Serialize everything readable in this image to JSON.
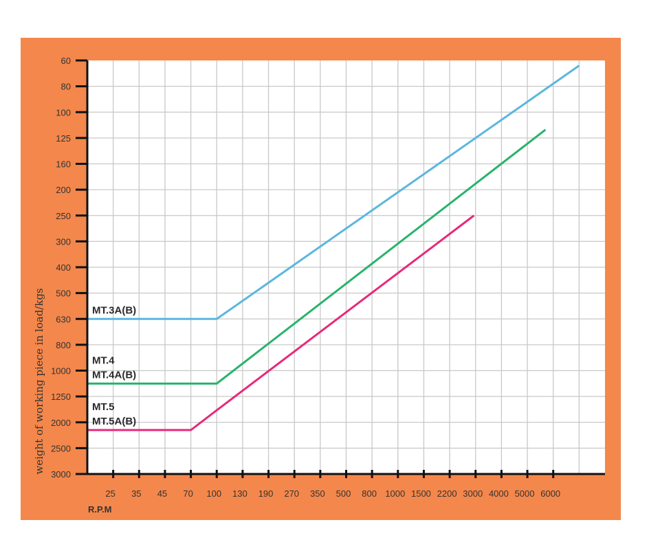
{
  "chart_data": {
    "type": "line",
    "title": "",
    "xlabel": "R.P.M",
    "ylabel": "weight of working piece in load/kgs",
    "x_ticks": [
      "25",
      "35",
      "45",
      "70",
      "100",
      "130",
      "190",
      "270",
      "350",
      "500",
      "800",
      "1000",
      "1500",
      "2200",
      "3000",
      "4000",
      "5000",
      "6000"
    ],
    "y_ticks": [
      "60",
      "80",
      "100",
      "125",
      "160",
      "200",
      "250",
      "300",
      "400",
      "500",
      "630",
      "800",
      "1000",
      "1250",
      "2000",
      "2500",
      "3000"
    ],
    "y_inverted": true,
    "grid": true,
    "background_color": "#F4874B",
    "series": [
      {
        "name": "MT.3A(B)",
        "label_lines": [
          "MT.3A(B)"
        ],
        "color": "#5BB6DE",
        "points": [
          [
            15,
            630
          ],
          [
            100,
            630
          ],
          [
            7000,
            64
          ]
        ]
      },
      {
        "name": "MT.4 / MT.4A(B)",
        "label_lines": [
          "MT.4",
          "MT.4A(B)"
        ],
        "color": "#27B36B",
        "points": [
          [
            15,
            1125
          ],
          [
            100,
            1125
          ],
          [
            5700,
            117
          ]
        ]
      },
      {
        "name": "MT.5 / MT.5A(B)",
        "label_lines": [
          "MT.5",
          "MT.5A(B)"
        ],
        "color": "#E8287A",
        "points": [
          [
            15,
            2150
          ],
          [
            70,
            2150
          ],
          [
            100,
            1650
          ],
          [
            2950,
            250
          ]
        ]
      }
    ]
  }
}
